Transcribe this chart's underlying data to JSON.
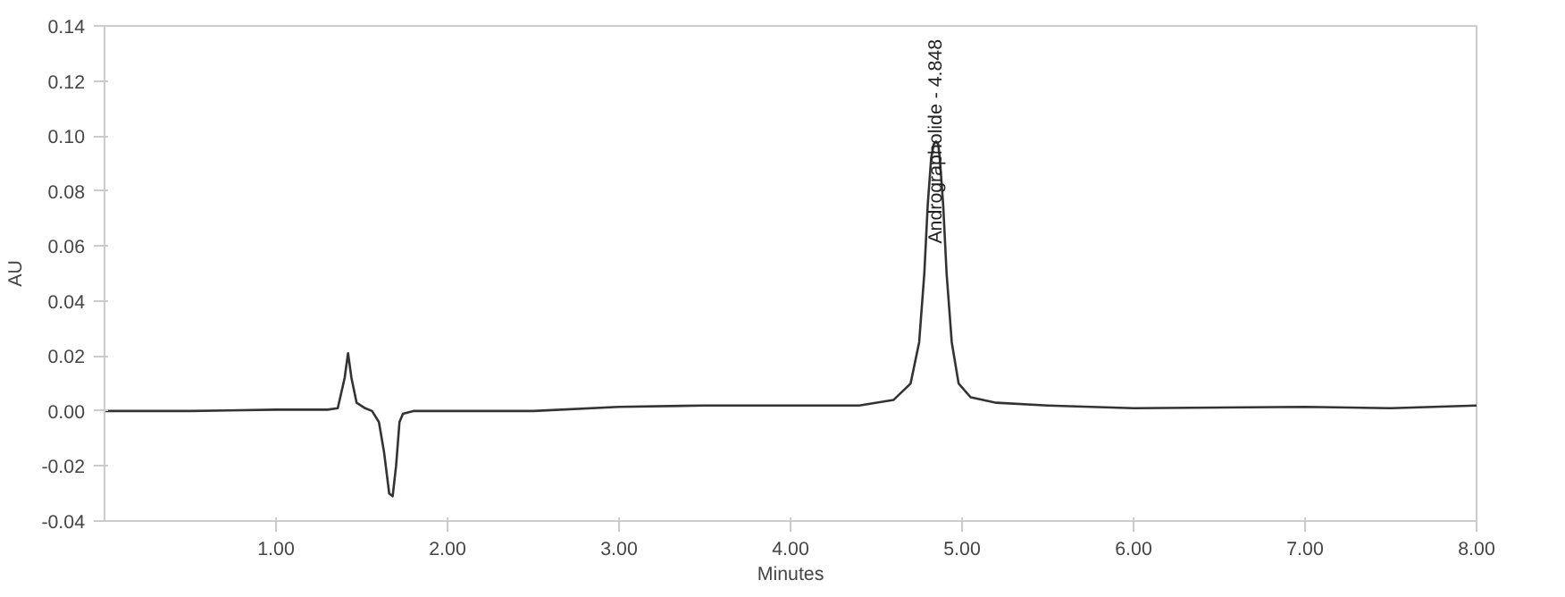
{
  "chart_data": {
    "type": "line",
    "xlabel": "Minutes",
    "ylabel": "AU",
    "x": [
      0.0,
      0.5,
      1.0,
      1.3,
      1.36,
      1.4,
      1.42,
      1.44,
      1.47,
      1.52,
      1.56,
      1.6,
      1.63,
      1.66,
      1.68,
      1.7,
      1.72,
      1.74,
      1.8,
      2.5,
      3.0,
      3.5,
      4.0,
      4.4,
      4.6,
      4.7,
      4.75,
      4.78,
      4.8,
      4.82,
      4.835,
      4.848,
      4.861,
      4.87,
      4.89,
      4.91,
      4.94,
      4.98,
      5.05,
      5.2,
      5.5,
      6.0,
      7.0,
      7.5,
      8.0
    ],
    "series": [
      {
        "color": "#333333",
        "values": [
          0.0,
          0.0,
          0.0005,
          0.0005,
          0.001,
          0.012,
          0.021,
          0.012,
          0.003,
          0.001,
          0.0,
          -0.004,
          -0.015,
          -0.03,
          -0.031,
          -0.02,
          -0.004,
          -0.001,
          0.0,
          0.0,
          0.0015,
          0.002,
          0.002,
          0.002,
          0.004,
          0.01,
          0.025,
          0.05,
          0.075,
          0.092,
          0.097,
          0.098,
          0.097,
          0.092,
          0.075,
          0.05,
          0.025,
          0.01,
          0.005,
          0.003,
          0.002,
          0.001,
          0.0015,
          0.001,
          0.002
        ]
      }
    ],
    "xlim": [
      0,
      8
    ],
    "xticks": [
      {
        "value": 1,
        "label": "1.00"
      },
      {
        "value": 2,
        "label": "2.00"
      },
      {
        "value": 3,
        "label": "3.00"
      },
      {
        "value": 4,
        "label": "4.00"
      },
      {
        "value": 5,
        "label": "5.00"
      },
      {
        "value": 6,
        "label": "6.00"
      },
      {
        "value": 7,
        "label": "7.00"
      },
      {
        "value": 8,
        "label": "8.00"
      }
    ],
    "ylim": [
      -0.04,
      0.14
    ],
    "yticks": [
      {
        "value": -0.04,
        "label": "-0.04"
      },
      {
        "value": -0.02,
        "label": "-0.02"
      },
      {
        "value": 0,
        "label": "0.00"
      },
      {
        "value": 0.02,
        "label": "0.02"
      },
      {
        "value": 0.04,
        "label": "0.04"
      },
      {
        "value": 0.06,
        "label": "0.06"
      },
      {
        "value": 0.08,
        "label": "0.08"
      },
      {
        "value": 0.1,
        "label": "0.10"
      },
      {
        "value": 0.12,
        "label": "0.12"
      },
      {
        "value": 0.14,
        "label": "0.14"
      }
    ],
    "annotations": [
      {
        "text": "Andrographolide - 4.848",
        "x": 4.848,
        "y": 0.098
      }
    ],
    "grid": false,
    "marker": "none",
    "line_style": "solid"
  }
}
